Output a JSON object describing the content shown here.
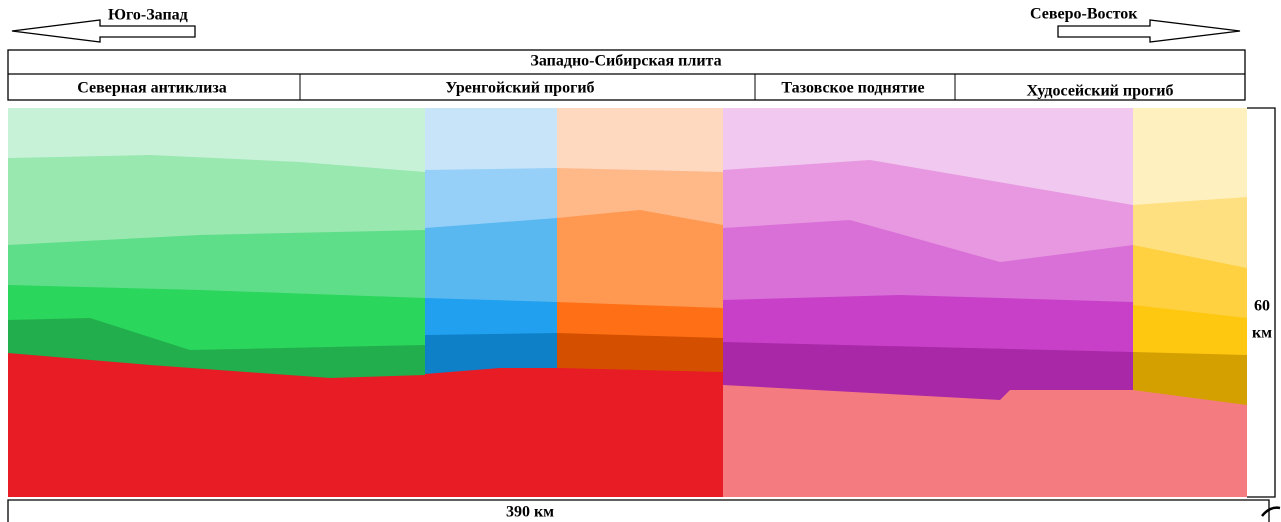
{
  "header": {
    "direction_left": "Юго-Запад",
    "direction_right": "Северо-Восток",
    "plate": "Западно-Сибирская плита",
    "regions": [
      "Северная антиклиза",
      "Уренгойский прогиб",
      "Тазовское поднятие",
      "Худосейский прогиб"
    ]
  },
  "scale": {
    "depth_value": "60",
    "depth_unit": "км",
    "width": "390 км"
  }
}
